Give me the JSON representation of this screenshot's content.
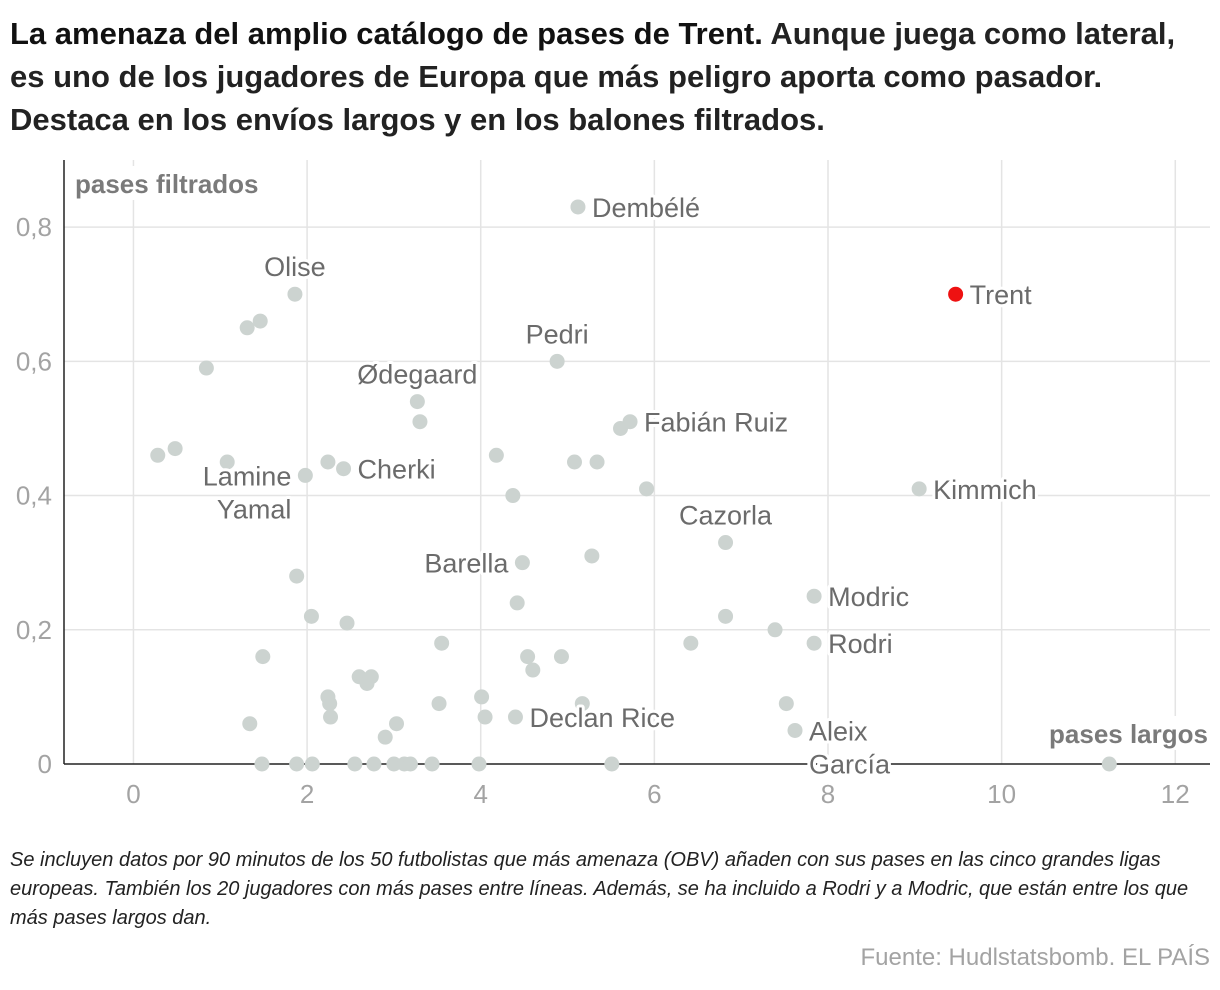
{
  "header": {
    "title": "La amenaza del amplio catálogo de pases de Trent.",
    "subtitle": "Aunque juega como lateral, es uno de los jugadores de Europa que más peligro aporta como pasador. Destaca en los envíos largos y en los balones filtrados."
  },
  "footer": {
    "note": "Se incluyen datos por 90 minutos de los 50 futbolistas que más amenaza (OBV) añaden con sus pases en las cinco grandes ligas europeas. También los 20 jugadores con más pases entre líneas. Además, se ha incluido a Rodri y a Modric, que están entre los que más pases largos dan.",
    "source": "Fuente: Hudlstatsbomb. EL PAÍS"
  },
  "colors": {
    "highlight": "#ee1111",
    "point": "#ccd3d0",
    "grid": "#e4e4e4",
    "axis": "#222222",
    "tick": "#a3a3a3",
    "label": "#6b6b6b"
  },
  "chart_data": {
    "type": "scatter",
    "xlabel": "pases largos",
    "ylabel": "pases filtrados",
    "xlim": [
      -0.8,
      12.4
    ],
    "ylim": [
      0,
      0.9
    ],
    "xticks": [
      {
        "value": 0,
        "label": "0"
      },
      {
        "value": 2,
        "label": "2"
      },
      {
        "value": 4,
        "label": "4"
      },
      {
        "value": 6,
        "label": "6"
      },
      {
        "value": 8,
        "label": "8"
      },
      {
        "value": 10,
        "label": "10"
      },
      {
        "value": 12,
        "label": "12"
      }
    ],
    "yticks": [
      {
        "value": 0,
        "label": "0"
      },
      {
        "value": 0.2,
        "label": "0,2"
      },
      {
        "value": 0.4,
        "label": "0,4"
      },
      {
        "value": 0.6,
        "label": "0,6"
      },
      {
        "value": 0.8,
        "label": "0,8"
      }
    ],
    "grid": true,
    "highlighted": [
      {
        "name": "Trent",
        "x": 9.47,
        "y": 0.7
      }
    ],
    "labeled": [
      {
        "name": [
          "Dembélé"
        ],
        "x": 5.12,
        "y": 0.83,
        "anchor": "right"
      },
      {
        "name": [
          "Olise"
        ],
        "x": 1.86,
        "y": 0.7,
        "anchor": "above"
      },
      {
        "name": [
          "Pedri"
        ],
        "x": 4.88,
        "y": 0.6,
        "anchor": "above"
      },
      {
        "name": [
          "Ødegaard"
        ],
        "x": 3.27,
        "y": 0.54,
        "anchor": "above"
      },
      {
        "name": [
          "Fabián Ruiz"
        ],
        "x": 5.72,
        "y": 0.51,
        "anchor": "right"
      },
      {
        "name": [
          "Cherki"
        ],
        "x": 2.42,
        "y": 0.44,
        "anchor": "right"
      },
      {
        "name": [
          "Lamine",
          "Yamal"
        ],
        "x": 1.98,
        "y": 0.43,
        "anchor": "left"
      },
      {
        "name": [
          "Kimmich"
        ],
        "x": 9.05,
        "y": 0.41,
        "anchor": "right"
      },
      {
        "name": [
          "Cazorla"
        ],
        "x": 6.82,
        "y": 0.33,
        "anchor": "above"
      },
      {
        "name": [
          "Barella"
        ],
        "x": 4.48,
        "y": 0.3,
        "anchor": "left"
      },
      {
        "name": [
          "Modric"
        ],
        "x": 7.84,
        "y": 0.25,
        "anchor": "right"
      },
      {
        "name": [
          "Rodri"
        ],
        "x": 7.84,
        "y": 0.18,
        "anchor": "right"
      },
      {
        "name": [
          "Declan Rice"
        ],
        "x": 4.4,
        "y": 0.07,
        "anchor": "right"
      },
      {
        "name": [
          "Aleix",
          "García"
        ],
        "x": 7.62,
        "y": 0.05,
        "anchor": "right"
      }
    ],
    "points": [
      {
        "x": 1.31,
        "y": 0.65
      },
      {
        "x": 1.46,
        "y": 0.66
      },
      {
        "x": 0.84,
        "y": 0.59
      },
      {
        "x": 3.3,
        "y": 0.51
      },
      {
        "x": 5.61,
        "y": 0.5
      },
      {
        "x": 0.28,
        "y": 0.46
      },
      {
        "x": 0.48,
        "y": 0.47
      },
      {
        "x": 1.08,
        "y": 0.45
      },
      {
        "x": 2.24,
        "y": 0.45
      },
      {
        "x": 4.18,
        "y": 0.46
      },
      {
        "x": 5.08,
        "y": 0.45
      },
      {
        "x": 5.34,
        "y": 0.45
      },
      {
        "x": 4.37,
        "y": 0.4
      },
      {
        "x": 5.91,
        "y": 0.41
      },
      {
        "x": 5.28,
        "y": 0.31
      },
      {
        "x": 1.88,
        "y": 0.28
      },
      {
        "x": 2.05,
        "y": 0.22
      },
      {
        "x": 2.46,
        "y": 0.21
      },
      {
        "x": 4.42,
        "y": 0.24
      },
      {
        "x": 6.82,
        "y": 0.22
      },
      {
        "x": 7.39,
        "y": 0.2
      },
      {
        "x": 1.49,
        "y": 0.16
      },
      {
        "x": 3.55,
        "y": 0.18
      },
      {
        "x": 6.42,
        "y": 0.18
      },
      {
        "x": 4.54,
        "y": 0.16
      },
      {
        "x": 4.93,
        "y": 0.16
      },
      {
        "x": 4.6,
        "y": 0.14
      },
      {
        "x": 2.6,
        "y": 0.13
      },
      {
        "x": 2.74,
        "y": 0.13
      },
      {
        "x": 2.69,
        "y": 0.12
      },
      {
        "x": 2.24,
        "y": 0.1
      },
      {
        "x": 2.26,
        "y": 0.09
      },
      {
        "x": 3.52,
        "y": 0.09
      },
      {
        "x": 4.01,
        "y": 0.1
      },
      {
        "x": 5.17,
        "y": 0.09
      },
      {
        "x": 7.52,
        "y": 0.09
      },
      {
        "x": 1.34,
        "y": 0.06
      },
      {
        "x": 2.27,
        "y": 0.07
      },
      {
        "x": 3.03,
        "y": 0.06
      },
      {
        "x": 4.05,
        "y": 0.07
      },
      {
        "x": 2.9,
        "y": 0.04
      },
      {
        "x": 1.48,
        "y": 0.0
      },
      {
        "x": 1.88,
        "y": 0.0
      },
      {
        "x": 2.06,
        "y": 0.0
      },
      {
        "x": 2.55,
        "y": 0.0
      },
      {
        "x": 2.77,
        "y": 0.0
      },
      {
        "x": 3.0,
        "y": 0.0
      },
      {
        "x": 3.12,
        "y": 0.0
      },
      {
        "x": 3.19,
        "y": 0.0
      },
      {
        "x": 3.44,
        "y": 0.0
      },
      {
        "x": 3.98,
        "y": 0.0
      },
      {
        "x": 5.51,
        "y": 0.0
      },
      {
        "x": 11.24,
        "y": 0.0
      }
    ]
  }
}
